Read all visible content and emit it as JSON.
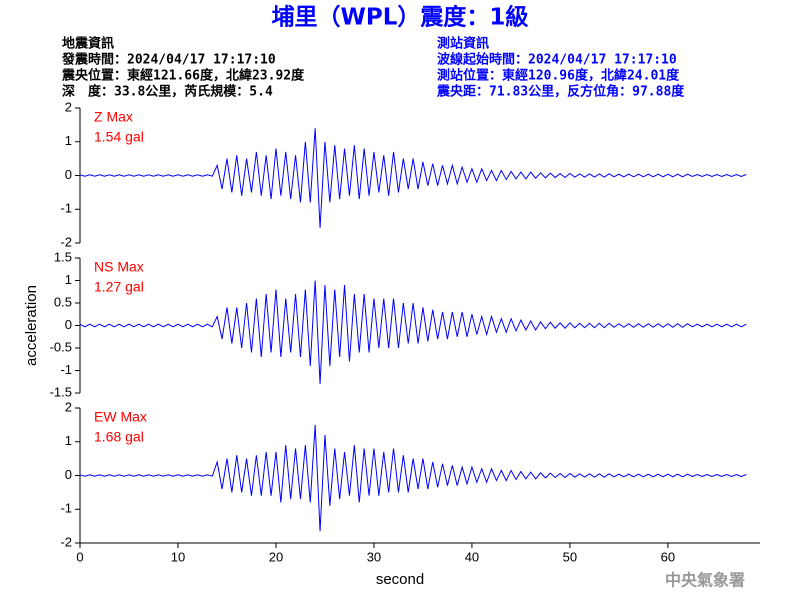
{
  "header": {
    "title": "埔里（WPL）震度：1級",
    "left": [
      "地震資訊",
      "發震時間：2024/04/17 17:17:10",
      "震央位置：東經121.66度，北緯23.92度",
      "深　度：33.8公里，芮氏規模：5.4"
    ],
    "right": [
      "測站資訊",
      "波線起始時間：2024/04/17 17:17:10",
      "測站位置：東經120.96度，北緯24.01度",
      "震央距：71.83公里，反方位角：97.88度"
    ]
  },
  "footer": "中央氣象署",
  "chart_data": [
    {
      "type": "line",
      "label": "Z Max",
      "max_label": "1.54 gal",
      "color": "#0000ff",
      "label_color": "#ff0000",
      "ylim": [
        -2,
        2
      ],
      "yticks": [
        -2,
        -1,
        0,
        1,
        2
      ],
      "xlim": [
        0,
        69.4
      ],
      "x": [
        0,
        0.5,
        1,
        1.5,
        2,
        2.5,
        3,
        3.5,
        4,
        4.5,
        5,
        5.5,
        6,
        6.5,
        7,
        7.5,
        8,
        8.5,
        9,
        9.5,
        10,
        10.5,
        11,
        11.5,
        12,
        12.5,
        13,
        13.5,
        14,
        14.5,
        15,
        15.5,
        16,
        16.5,
        17,
        17.5,
        18,
        18.5,
        19,
        19.5,
        20,
        20.5,
        21,
        21.5,
        22,
        22.5,
        23,
        23.5,
        24,
        24.5,
        25,
        25.5,
        26,
        26.5,
        27,
        27.5,
        28,
        28.5,
        29,
        29.5,
        30,
        30.5,
        31,
        31.5,
        32,
        32.5,
        33,
        33.5,
        34,
        34.5,
        35,
        35.5,
        36,
        36.5,
        37,
        37.5,
        38,
        38.5,
        39,
        39.5,
        40,
        40.5,
        41,
        41.5,
        42,
        42.5,
        43,
        43.5,
        44,
        44.5,
        45,
        45.5,
        46,
        46.5,
        47,
        47.5,
        48,
        48.5,
        49,
        49.5,
        50,
        50.5,
        51,
        51.5,
        52,
        52.5,
        53,
        53.5,
        54,
        54.5,
        55,
        55.5,
        56,
        56.5,
        57,
        57.5,
        58,
        58.5,
        59,
        59.5,
        60,
        60.5,
        61,
        61.5,
        62,
        62.5,
        63,
        63.5,
        64,
        64.5,
        65,
        65.5,
        66,
        66.5,
        67,
        67.5,
        68
      ],
      "values": [
        0.02,
        -0.02,
        0.02,
        -0.02,
        0.02,
        -0.02,
        0.02,
        -0.02,
        0.02,
        -0.02,
        0.02,
        -0.02,
        0.02,
        -0.02,
        0.02,
        -0.02,
        0.02,
        -0.02,
        0.02,
        -0.02,
        0.02,
        -0.02,
        0.02,
        -0.02,
        0.02,
        -0.02,
        0.02,
        -0.02,
        0.3,
        -0.4,
        0.5,
        -0.5,
        0.6,
        -0.6,
        0.5,
        -0.5,
        0.7,
        -0.6,
        0.6,
        -0.7,
        0.8,
        -0.6,
        0.7,
        -0.7,
        0.6,
        -0.8,
        1.0,
        -0.8,
        1.4,
        -1.55,
        1.0,
        -0.8,
        0.9,
        -0.7,
        0.8,
        -0.6,
        0.9,
        -0.7,
        0.8,
        -0.6,
        0.7,
        -0.5,
        0.6,
        -0.6,
        0.7,
        -0.5,
        0.5,
        -0.4,
        0.5,
        -0.4,
        0.4,
        -0.3,
        0.35,
        -0.3,
        0.3,
        -0.25,
        0.3,
        -0.25,
        0.25,
        -0.2,
        0.2,
        -0.2,
        0.2,
        -0.15,
        0.15,
        -0.15,
        0.15,
        -0.12,
        0.12,
        -0.1,
        0.1,
        -0.1,
        0.1,
        -0.08,
        0.08,
        -0.07,
        0.07,
        -0.06,
        0.06,
        -0.06,
        0.06,
        -0.05,
        0.05,
        -0.05,
        0.05,
        -0.05,
        0.05,
        -0.05,
        0.05,
        -0.04,
        0.04,
        -0.04,
        0.04,
        -0.04,
        0.04,
        -0.04,
        0.04,
        -0.04,
        0.04,
        -0.04,
        0.04,
        -0.04,
        0.04,
        -0.04,
        0.04,
        -0.03,
        0.03,
        -0.03,
        0.03,
        -0.03,
        0.03,
        -0.03,
        0.03,
        -0.03,
        0.03,
        -0.03,
        0.03
      ]
    },
    {
      "type": "line",
      "label": "NS Max",
      "max_label": "1.27 gal",
      "color": "#0000ff",
      "label_color": "#ff0000",
      "ylim": [
        -1.5,
        1.5
      ],
      "yticks": [
        -1.5,
        -1,
        -0.5,
        0,
        0.5,
        1,
        1.5
      ],
      "xlim": [
        0,
        69.4
      ],
      "ylabel": "acceleration",
      "x": [
        0,
        0.5,
        1,
        1.5,
        2,
        2.5,
        3,
        3.5,
        4,
        4.5,
        5,
        5.5,
        6,
        6.5,
        7,
        7.5,
        8,
        8.5,
        9,
        9.5,
        10,
        10.5,
        11,
        11.5,
        12,
        12.5,
        13,
        13.5,
        14,
        14.5,
        15,
        15.5,
        16,
        16.5,
        17,
        17.5,
        18,
        18.5,
        19,
        19.5,
        20,
        20.5,
        21,
        21.5,
        22,
        22.5,
        23,
        23.5,
        24,
        24.5,
        25,
        25.5,
        26,
        26.5,
        27,
        27.5,
        28,
        28.5,
        29,
        29.5,
        30,
        30.5,
        31,
        31.5,
        32,
        32.5,
        33,
        33.5,
        34,
        34.5,
        35,
        35.5,
        36,
        36.5,
        37,
        37.5,
        38,
        38.5,
        39,
        39.5,
        40,
        40.5,
        41,
        41.5,
        42,
        42.5,
        43,
        43.5,
        44,
        44.5,
        45,
        45.5,
        46,
        46.5,
        47,
        47.5,
        48,
        48.5,
        49,
        49.5,
        50,
        50.5,
        51,
        51.5,
        52,
        52.5,
        53,
        53.5,
        54,
        54.5,
        55,
        55.5,
        56,
        56.5,
        57,
        57.5,
        58,
        58.5,
        59,
        59.5,
        60,
        60.5,
        61,
        61.5,
        62,
        62.5,
        63,
        63.5,
        64,
        64.5,
        65,
        65.5,
        66,
        66.5,
        67,
        67.5,
        68
      ],
      "values": [
        0.03,
        -0.03,
        0.03,
        -0.03,
        0.03,
        -0.03,
        0.03,
        -0.03,
        0.03,
        -0.03,
        0.03,
        -0.03,
        0.03,
        -0.03,
        0.03,
        -0.03,
        0.03,
        -0.03,
        0.03,
        -0.03,
        0.03,
        -0.03,
        0.03,
        -0.03,
        0.03,
        -0.03,
        0.03,
        -0.03,
        0.2,
        -0.3,
        0.4,
        -0.4,
        0.4,
        -0.5,
        0.5,
        -0.6,
        0.6,
        -0.7,
        0.7,
        -0.6,
        0.8,
        -0.7,
        0.6,
        -0.6,
        0.7,
        -0.7,
        0.8,
        -0.9,
        1.0,
        -1.3,
        0.9,
        -0.9,
        0.8,
        -0.7,
        0.9,
        -0.8,
        0.7,
        -0.6,
        0.7,
        -0.6,
        0.6,
        -0.5,
        0.6,
        -0.5,
        0.6,
        -0.5,
        0.5,
        -0.4,
        0.5,
        -0.4,
        0.4,
        -0.35,
        0.35,
        -0.3,
        0.3,
        -0.3,
        0.3,
        -0.25,
        0.3,
        -0.25,
        0.25,
        -0.2,
        0.2,
        -0.2,
        0.2,
        -0.15,
        0.15,
        -0.15,
        0.15,
        -0.12,
        0.12,
        -0.1,
        0.1,
        -0.1,
        0.08,
        -0.07,
        0.07,
        -0.06,
        0.06,
        -0.06,
        0.06,
        -0.05,
        0.05,
        -0.05,
        0.05,
        -0.05,
        0.05,
        -0.05,
        0.05,
        -0.04,
        0.04,
        -0.04,
        0.04,
        -0.04,
        0.04,
        -0.04,
        0.04,
        -0.04,
        0.04,
        -0.04,
        0.04,
        -0.04,
        0.04,
        -0.04,
        0.04,
        -0.03,
        0.03,
        -0.03,
        0.03,
        -0.03,
        0.03,
        -0.03,
        0.03,
        -0.03,
        0.03,
        -0.03,
        0.03
      ]
    },
    {
      "type": "line",
      "label": "EW Max",
      "max_label": "1.68 gal",
      "color": "#0000ff",
      "label_color": "#ff0000",
      "ylim": [
        -2,
        2
      ],
      "yticks": [
        -2,
        -1,
        0,
        1,
        2
      ],
      "xlim": [
        0,
        69.4
      ],
      "xticks": [
        0,
        10,
        20,
        30,
        40,
        50,
        60
      ],
      "xlabel": "second",
      "x": [
        0,
        0.5,
        1,
        1.5,
        2,
        2.5,
        3,
        3.5,
        4,
        4.5,
        5,
        5.5,
        6,
        6.5,
        7,
        7.5,
        8,
        8.5,
        9,
        9.5,
        10,
        10.5,
        11,
        11.5,
        12,
        12.5,
        13,
        13.5,
        14,
        14.5,
        15,
        15.5,
        16,
        16.5,
        17,
        17.5,
        18,
        18.5,
        19,
        19.5,
        20,
        20.5,
        21,
        21.5,
        22,
        22.5,
        23,
        23.5,
        24,
        24.5,
        25,
        25.5,
        26,
        26.5,
        27,
        27.5,
        28,
        28.5,
        29,
        29.5,
        30,
        30.5,
        31,
        31.5,
        32,
        32.5,
        33,
        33.5,
        34,
        34.5,
        35,
        35.5,
        36,
        36.5,
        37,
        37.5,
        38,
        38.5,
        39,
        39.5,
        40,
        40.5,
        41,
        41.5,
        42,
        42.5,
        43,
        43.5,
        44,
        44.5,
        45,
        45.5,
        46,
        46.5,
        47,
        47.5,
        48,
        48.5,
        49,
        49.5,
        50,
        50.5,
        51,
        51.5,
        52,
        52.5,
        53,
        53.5,
        54,
        54.5,
        55,
        55.5,
        56,
        56.5,
        57,
        57.5,
        58,
        58.5,
        59,
        59.5,
        60,
        60.5,
        61,
        61.5,
        62,
        62.5,
        63,
        63.5,
        64,
        64.5,
        65,
        65.5,
        66,
        66.5,
        67,
        67.5,
        68
      ],
      "values": [
        0.02,
        -0.02,
        0.02,
        -0.02,
        0.02,
        -0.02,
        0.02,
        -0.02,
        0.02,
        -0.02,
        0.02,
        -0.02,
        0.02,
        -0.02,
        0.02,
        -0.02,
        0.02,
        -0.02,
        0.02,
        -0.02,
        0.02,
        -0.02,
        0.02,
        -0.02,
        0.02,
        -0.02,
        0.02,
        -0.02,
        0.4,
        -0.4,
        0.5,
        -0.5,
        0.6,
        -0.5,
        0.5,
        -0.6,
        0.6,
        -0.6,
        0.7,
        -0.6,
        0.7,
        -0.8,
        0.9,
        -0.7,
        0.8,
        -0.7,
        0.9,
        -0.8,
        1.5,
        -1.65,
        1.2,
        -0.9,
        0.8,
        -0.7,
        0.7,
        -0.6,
        0.9,
        -0.8,
        0.8,
        -0.6,
        0.8,
        -0.6,
        0.7,
        -0.5,
        0.8,
        -0.5,
        0.6,
        -0.5,
        0.5,
        -0.4,
        0.5,
        -0.4,
        0.4,
        -0.35,
        0.35,
        -0.3,
        0.3,
        -0.3,
        0.25,
        -0.25,
        0.25,
        -0.2,
        0.2,
        -0.2,
        0.2,
        -0.15,
        0.15,
        -0.15,
        0.15,
        -0.12,
        0.12,
        -0.1,
        0.1,
        -0.1,
        0.08,
        -0.07,
        0.07,
        -0.06,
        0.06,
        -0.06,
        0.06,
        -0.05,
        0.05,
        -0.05,
        0.05,
        -0.05,
        0.05,
        -0.05,
        0.05,
        -0.04,
        0.04,
        -0.04,
        0.04,
        -0.04,
        0.04,
        -0.04,
        0.04,
        -0.04,
        0.04,
        -0.04,
        0.04,
        -0.04,
        0.04,
        -0.04,
        0.04,
        -0.03,
        0.03,
        -0.03,
        0.03,
        -0.03,
        0.03,
        -0.03,
        0.03,
        -0.03,
        0.03,
        -0.03,
        0.03
      ]
    }
  ]
}
